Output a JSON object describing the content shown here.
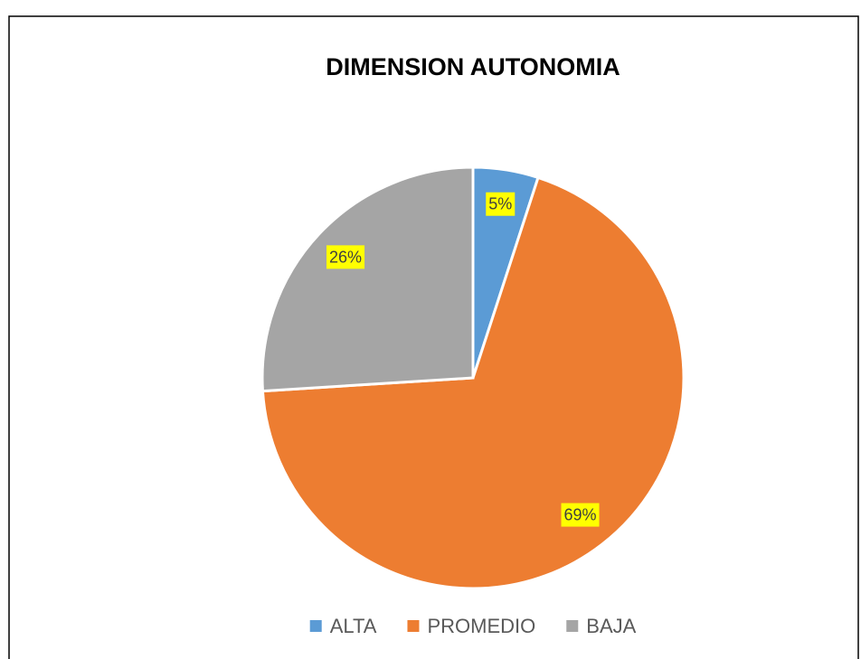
{
  "chart_data": {
    "type": "pie",
    "title": "DIMENSION AUTONOMIA",
    "categories": [
      "ALTA",
      "PROMEDIO",
      "BAJA"
    ],
    "values": [
      5,
      69,
      26
    ],
    "value_labels": [
      "5%",
      "69%",
      "26%"
    ],
    "colors": [
      "#5b9bd5",
      "#ed7d31",
      "#a5a5a5"
    ],
    "legend": "bottom"
  }
}
